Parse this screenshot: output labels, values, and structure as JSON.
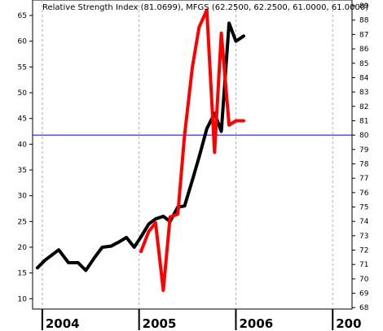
{
  "chart_data": {
    "type": "line",
    "title": "Relative Strength Index (81.0699), MFGS (62.2500, 62.2500, 61.0000, 61.0000)",
    "x_ticks": [
      "2004",
      "2005",
      "2006",
      "200"
    ],
    "y_left_ticks": [
      10,
      15,
      20,
      25,
      30,
      35,
      40,
      45,
      50,
      55,
      60,
      65
    ],
    "y_left_range": [
      8,
      68
    ],
    "y_right_ticks": [
      68,
      69,
      70,
      71,
      72,
      73,
      74,
      75,
      76,
      77,
      78,
      79,
      80,
      81,
      82,
      83,
      84,
      85,
      86,
      87,
      88,
      89
    ],
    "y_right_range": [
      67.9,
      89.4
    ],
    "horizontal_line": {
      "value": 80.0,
      "axis": "right",
      "color": "#0000cc"
    },
    "grid": "vertical dashed at year boundaries",
    "series": [
      {
        "axis": "left",
        "color": "#000000",
        "x": [
          2003.95,
          2004.03,
          2004.17,
          2004.27,
          2004.37,
          2004.45,
          2004.54,
          2004.62,
          2004.71,
          2004.79,
          2004.87,
          2004.95,
          2005.02,
          2005.1,
          2005.17,
          2005.25,
          2005.32,
          2005.4,
          2005.47,
          2005.55,
          2005.62,
          2005.7,
          2005.78,
          2005.85,
          2005.93,
          2006.0,
          2006.08
        ],
        "y": [
          16,
          17.5,
          19.5,
          17,
          17,
          15.5,
          18,
          20,
          20.2,
          21,
          21.9,
          20,
          22,
          24.5,
          25.5,
          26,
          25,
          27.8,
          28,
          33,
          37.5,
          43,
          46,
          42.5,
          63.5,
          60,
          61
        ]
      },
      {
        "axis": "right",
        "color": "#ff0000",
        "x": [
          2005.02,
          2005.1,
          2005.17,
          2005.25,
          2005.32,
          2005.4,
          2005.47,
          2005.55,
          2005.62,
          2005.7,
          2005.78,
          2005.85,
          2005.93,
          2006.0,
          2006.08
        ],
        "y": [
          71.9,
          73.3,
          73.9,
          69.2,
          74.3,
          74.5,
          80.0,
          84.7,
          87.5,
          88.7,
          78.8,
          87.1,
          80.7,
          81.0,
          81.0
        ]
      }
    ]
  }
}
